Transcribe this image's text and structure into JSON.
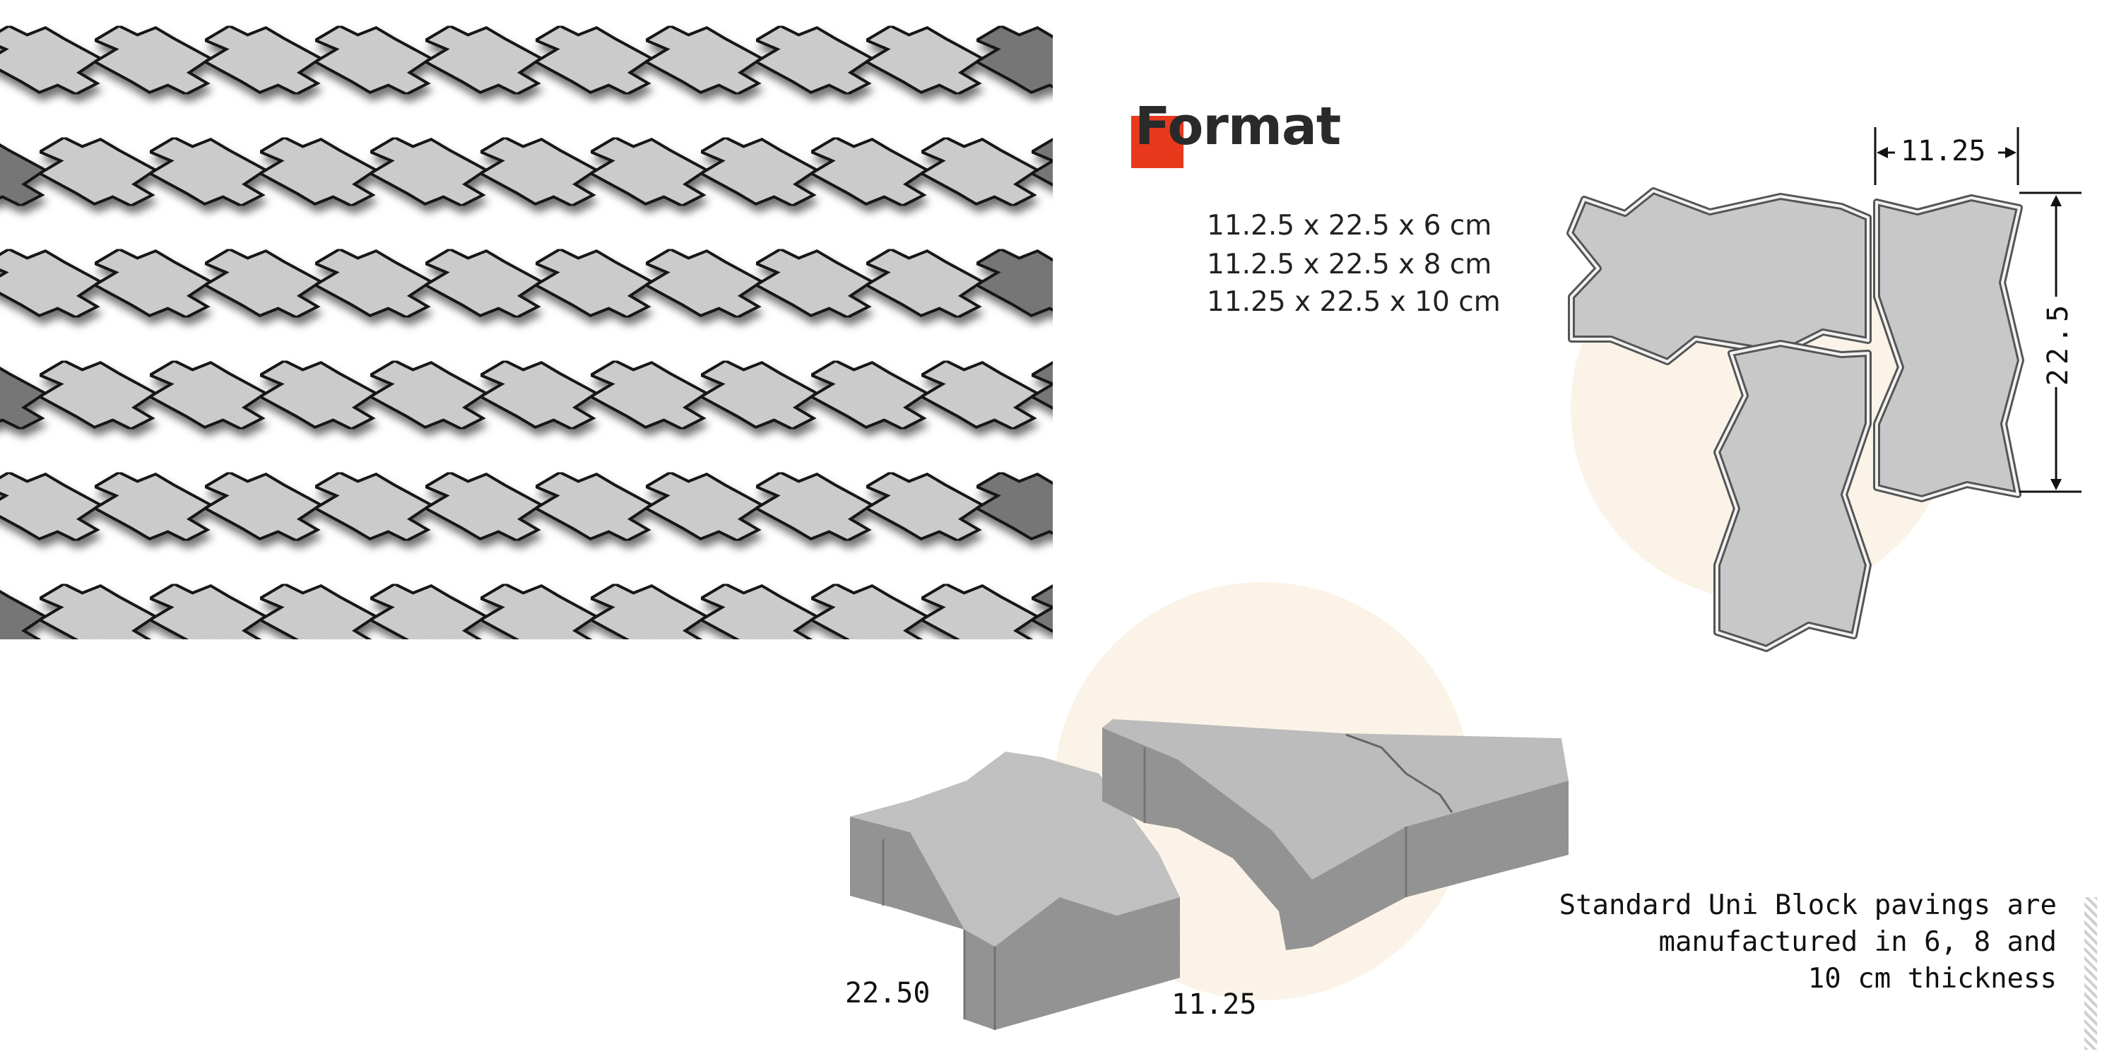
{
  "heading": "Format",
  "format_lines": [
    "11.2.5 x 22.5 x 6 cm",
    "11.2.5 x 22.5 x 8 cm",
    "11.25 x 22.5 x 10 cm"
  ],
  "plan_dimensions": {
    "width": "11.25",
    "length": "22.5"
  },
  "block_dimensions": {
    "length": "22.50",
    "width": "11.25"
  },
  "note_lines": [
    "Standard Uni Block pavings are",
    "manufactured in 6, 8 and",
    "10 cm thickness"
  ],
  "colors": {
    "accent": "#e8391d",
    "paver_light": "#d4d4d4",
    "paver_dark": "#7c7c7c",
    "highlight_circle": "#fbf3e7"
  },
  "icons": [
    "format-marker-icon",
    "dimension-arrow-icon"
  ]
}
